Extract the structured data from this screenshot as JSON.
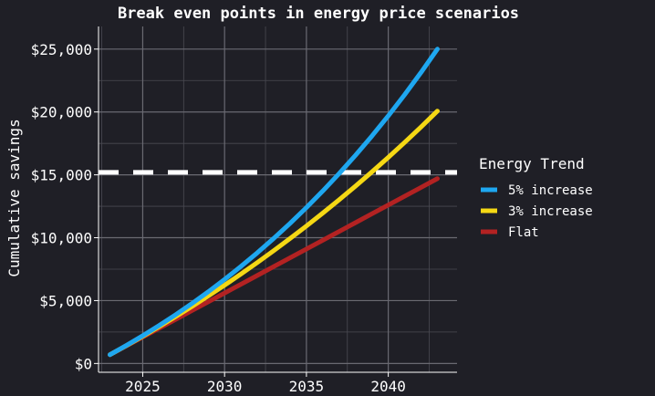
{
  "chart_data": {
    "type": "line",
    "title": "Break even points in energy price scenarios",
    "xlabel": "",
    "ylabel": "Cumulative savings",
    "xlim": [
      2022.3,
      2044.2
    ],
    "ylim": [
      -700,
      26800
    ],
    "x_ticks": [
      2025,
      2030,
      2035,
      2040
    ],
    "x_tick_labels": [
      "2025",
      "2030",
      "2035",
      "2040"
    ],
    "y_ticks": [
      0,
      5000,
      10000,
      15000,
      20000,
      25000
    ],
    "y_tick_labels": [
      "$0",
      "$5,000",
      "$10,000",
      "$15,000",
      "$20,000",
      "$25,000"
    ],
    "grid": true,
    "legend_placement": "right",
    "legend_title": "Energy Trend",
    "reference_line": {
      "y": 15200,
      "style": "dashed",
      "color": "#ffffff"
    },
    "x": [
      2023,
      2024,
      2025,
      2026,
      2027,
      2028,
      2029,
      2030,
      2031,
      2032,
      2033,
      2034,
      2035,
      2036,
      2037,
      2038,
      2039,
      2040,
      2041,
      2042,
      2043
    ],
    "series": [
      {
        "name": "5% increase",
        "color": "#1ea7f0",
        "values": [
          700,
          1435,
          2207,
          3017,
          3868,
          4761,
          5699,
          6684,
          7718,
          8804,
          9944,
          11141,
          12398,
          13718,
          15104,
          16559,
          18087,
          19691,
          21376,
          23144,
          25001
        ]
      },
      {
        "name": "3% increase",
        "color": "#f5d814",
        "values": [
          700,
          1421,
          2164,
          2929,
          3717,
          4528,
          5364,
          6225,
          7112,
          8025,
          8966,
          9935,
          10932,
          11960,
          13018,
          14109,
          15232,
          16389,
          17581,
          18808,
          20072
        ]
      },
      {
        "name": "Flat",
        "color": "#b32222",
        "values": [
          700,
          1400,
          2100,
          2800,
          3500,
          4200,
          4900,
          5600,
          6300,
          7000,
          7700,
          8400,
          9100,
          9800,
          10500,
          11200,
          11900,
          12600,
          13300,
          14000,
          14700
        ]
      }
    ]
  }
}
